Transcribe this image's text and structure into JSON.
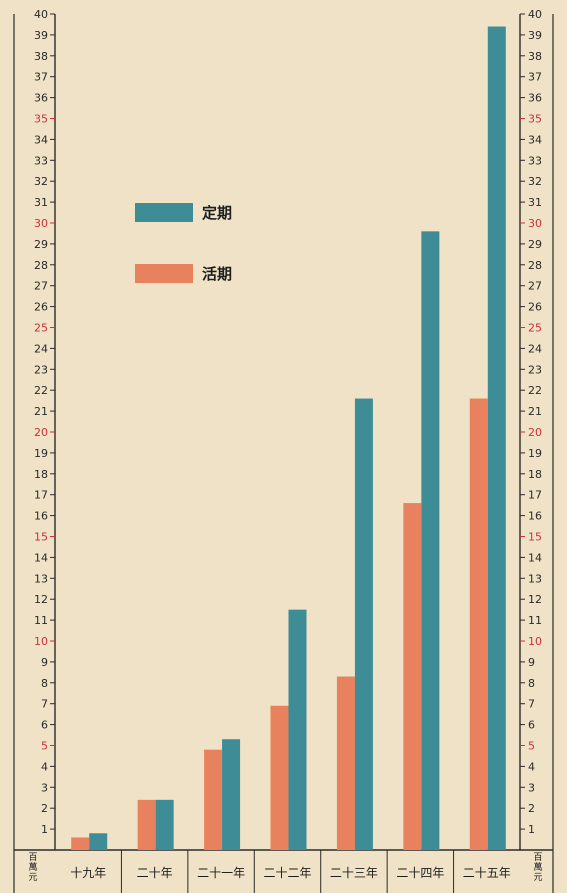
{
  "chart_data": {
    "type": "bar",
    "categories": [
      "十九年",
      "二十年",
      "二十一年",
      "二十二年",
      "二十三年",
      "二十四年",
      "二十五年"
    ],
    "series": [
      {
        "name": "活期",
        "color": "#e8825e",
        "values": [
          0.6,
          2.4,
          4.8,
          6.9,
          8.3,
          16.6,
          21.6
        ]
      },
      {
        "name": "定期",
        "color": "#3e8c96",
        "values": [
          0.8,
          2.4,
          5.3,
          11.5,
          21.6,
          29.6,
          39.4
        ]
      }
    ],
    "ylim": [
      0,
      40
    ],
    "yticks": [
      1,
      2,
      3,
      4,
      5,
      6,
      7,
      8,
      9,
      10,
      11,
      12,
      13,
      14,
      15,
      16,
      17,
      18,
      19,
      20,
      21,
      22,
      23,
      24,
      25,
      26,
      27,
      28,
      29,
      30,
      31,
      32,
      33,
      34,
      35,
      36,
      37,
      38,
      39,
      40
    ],
    "highlight_ticks": [
      5,
      10,
      15,
      20,
      25,
      30,
      35
    ],
    "highlight_color": "#c8323a",
    "unit_label": "百萬元",
    "legend": {
      "position": "top-left",
      "items": [
        "定期",
        "活期"
      ]
    },
    "grid": false
  }
}
